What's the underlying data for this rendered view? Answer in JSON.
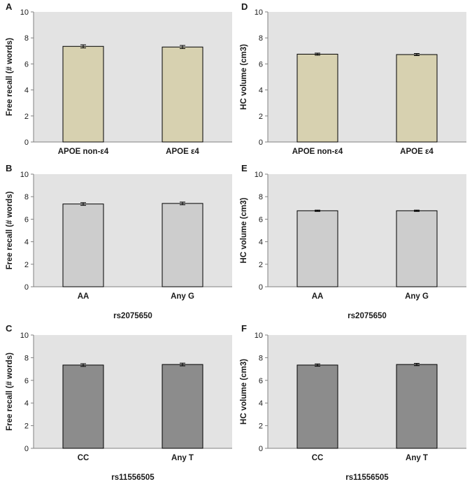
{
  "colors": {
    "plot_background": "#e3e3e3",
    "axis": "#808080",
    "bar_outline": "#000000",
    "apoe_bar": "#d7d1b0",
    "rs2075650_bar": "#cdcdcd",
    "rs11556505_bar": "#8c8c8c"
  },
  "chart_data": [
    {
      "panel": "A",
      "type": "bar",
      "categories": [
        "APOE non-ε4",
        "APOE ε4"
      ],
      "values": [
        7.35,
        7.3
      ],
      "errors": [
        0.12,
        0.12
      ],
      "ylabel": "Free recall (# words)",
      "xlabel": "",
      "ylim": [
        0,
        10
      ],
      "yticks": [
        "0",
        "2",
        "4",
        "6",
        "8",
        "10"
      ],
      "bar_color": "#d7d1b0"
    },
    {
      "panel": "B",
      "type": "bar",
      "categories": [
        "AA",
        "Any G"
      ],
      "values": [
        7.35,
        7.4
      ],
      "errors": [
        0.12,
        0.12
      ],
      "ylabel": "Free recall (# words)",
      "xlabel": "rs2075650",
      "ylim": [
        0,
        10
      ],
      "yticks": [
        "0",
        "2",
        "4",
        "6",
        "8",
        "10"
      ],
      "bar_color": "#cdcdcd"
    },
    {
      "panel": "C",
      "type": "bar",
      "categories": [
        "CC",
        "Any T"
      ],
      "values": [
        7.35,
        7.4
      ],
      "errors": [
        0.12,
        0.12
      ],
      "ylabel": "Free recall (# words)",
      "xlabel": "rs11556505",
      "ylim": [
        0,
        10
      ],
      "yticks": [
        "0",
        "2",
        "4",
        "6",
        "8",
        "10"
      ],
      "bar_color": "#8c8c8c"
    },
    {
      "panel": "D",
      "type": "bar",
      "categories": [
        "APOE non-ε4",
        "APOE ε4"
      ],
      "values": [
        6.75,
        6.72
      ],
      "errors": [
        0.08,
        0.08
      ],
      "ylabel": "HC volume (cm3)",
      "xlabel": "",
      "ylim": [
        0,
        10
      ],
      "yticks": [
        "0",
        "2",
        "4",
        "6",
        "8",
        "10"
      ],
      "bar_color": "#d7d1b0"
    },
    {
      "panel": "E",
      "type": "bar",
      "categories": [
        "AA",
        "Any G"
      ],
      "values": [
        6.75,
        6.75
      ],
      "errors": [
        0.06,
        0.06
      ],
      "ylabel": "HC volume (cm3)",
      "xlabel": "rs2075650",
      "ylim": [
        0,
        10
      ],
      "yticks": [
        "0",
        "2",
        "4",
        "6",
        "8",
        "10"
      ],
      "bar_color": "#cdcdcd"
    },
    {
      "panel": "F",
      "type": "bar",
      "categories": [
        "CC",
        "Any T"
      ],
      "values": [
        7.35,
        7.4
      ],
      "errors": [
        0.1,
        0.1
      ],
      "ylabel": "HC volume (cm3)",
      "xlabel": "rs11556505",
      "ylim": [
        0,
        10
      ],
      "yticks": [
        "0",
        "2",
        "4",
        "6",
        "8",
        "10"
      ],
      "bar_color": "#8c8c8c"
    }
  ]
}
